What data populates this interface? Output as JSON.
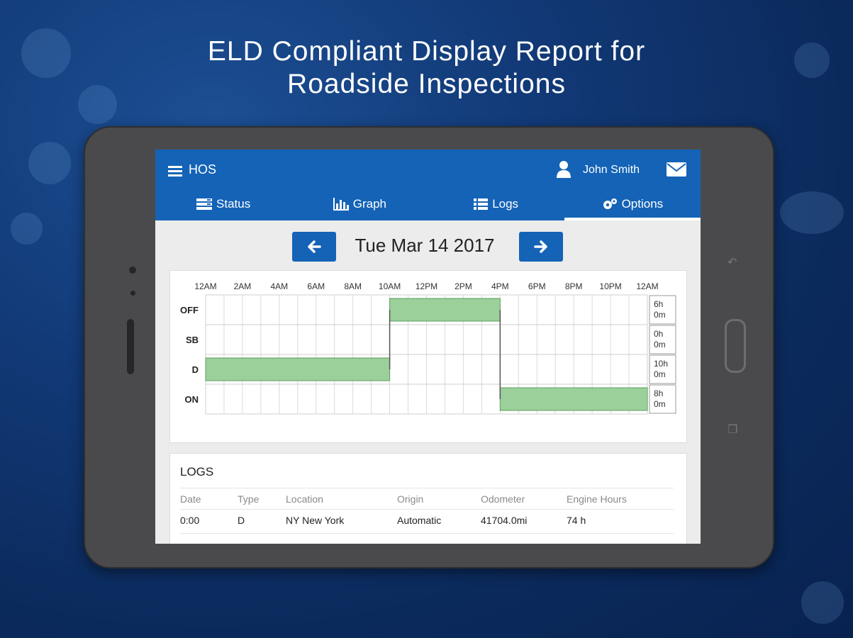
{
  "headline": {
    "line1": "ELD Compliant Display Report for",
    "line2": "Roadside Inspections"
  },
  "app": {
    "title": "HOS",
    "user_name": "John Smith",
    "tabs": [
      {
        "label": "Status",
        "icon": "status-icon"
      },
      {
        "label": "Graph",
        "icon": "bar-chart-icon"
      },
      {
        "label": "Logs",
        "icon": "list-icon"
      },
      {
        "label": "Options",
        "icon": "gears-icon",
        "active": true
      }
    ]
  },
  "date_nav": {
    "date": "Tue Mar 14 2017",
    "prev_icon": "arrow-left-icon",
    "next_icon": "arrow-right-icon"
  },
  "colors": {
    "brand_blue": "#1463b7",
    "duty_fill": "#9bd09b",
    "duty_stroke": "#5e9e5e"
  },
  "chart_data": {
    "type": "duty-status-graph",
    "time_labels": [
      "12AM",
      "2AM",
      "4AM",
      "6AM",
      "8AM",
      "10AM",
      "12PM",
      "2PM",
      "4PM",
      "6PM",
      "8PM",
      "10PM",
      "12AM"
    ],
    "statuses": [
      "OFF",
      "SB",
      "D",
      "ON"
    ],
    "totals": [
      {
        "h": "6h",
        "m": "0m"
      },
      {
        "h": "0h",
        "m": "0m"
      },
      {
        "h": "10h",
        "m": "0m"
      },
      {
        "h": "8h",
        "m": "0m"
      }
    ],
    "segments": [
      {
        "status": "D",
        "start_hour": 0,
        "end_hour": 10
      },
      {
        "status": "OFF",
        "start_hour": 10,
        "end_hour": 16
      },
      {
        "status": "ON",
        "start_hour": 16,
        "end_hour": 24
      }
    ]
  },
  "logs": {
    "title": "LOGS",
    "columns": [
      "Date",
      "Type",
      "Location",
      "Origin",
      "Odometer",
      "Engine Hours"
    ],
    "rows": [
      [
        "0:00",
        "D",
        "NY New York",
        "Automatic",
        "41704.0mi",
        "74 h"
      ]
    ]
  }
}
